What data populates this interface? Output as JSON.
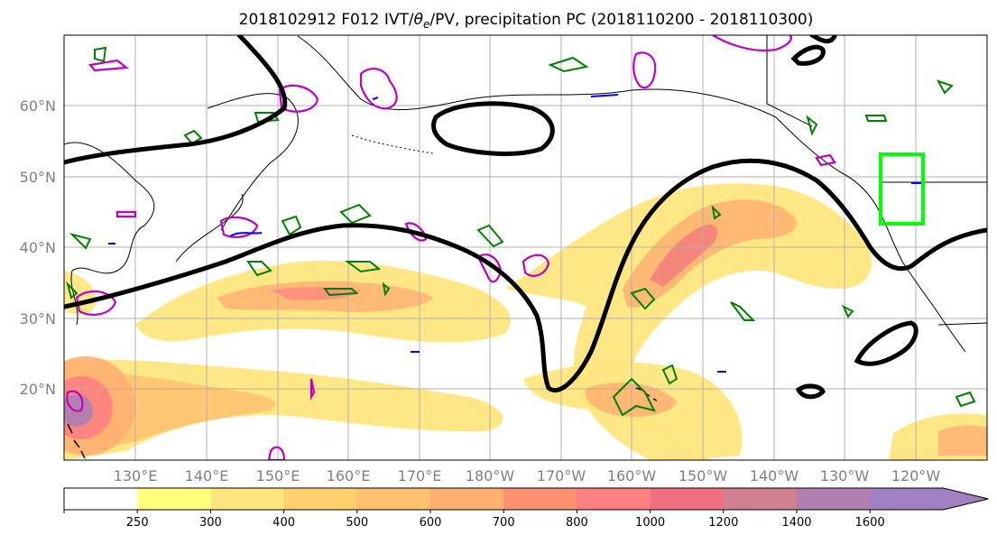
{
  "title": {
    "prefix": "2018102912 F012 IVT/",
    "theta": "θ",
    "sub": "e",
    "suffix": "/PV, precipitation PC (2018110200 - 2018110300)"
  },
  "map": {
    "lat_labels": [
      "60°N",
      "50°N",
      "40°N",
      "30°N",
      "20°N"
    ],
    "lon_labels": [
      "130°E",
      "140°E",
      "150°E",
      "160°E",
      "170°E",
      "180°W",
      "170°W",
      "160°W",
      "150°W",
      "140°W",
      "130°W",
      "120°W"
    ],
    "lon_range": [
      120,
      250
    ],
    "lat_range": [
      10,
      70
    ],
    "gridlines": true,
    "highlight_box": {
      "lon": [
        236,
        242
      ],
      "lat": [
        43,
        53
      ],
      "color": "#00ff00"
    },
    "colors": {
      "pv_contour": "#000000",
      "theta_contour_magenta": "#c000c0",
      "theta_contour_green": "#008000",
      "theta_contour_blue": "#0000ff",
      "coastline": "#000000"
    }
  },
  "colorbar": {
    "ticks": [
      "250",
      "300",
      "400",
      "500",
      "600",
      "700",
      "800",
      "1000",
      "1200",
      "1400",
      "1600"
    ],
    "colors": [
      "#ffff80",
      "#ffe680",
      "#ffd070",
      "#ffc070",
      "#ffb070",
      "#ff9070",
      "#ff8080",
      "#f07080",
      "#d08090",
      "#b080b0",
      "#a080c0"
    ],
    "extend": "max"
  }
}
